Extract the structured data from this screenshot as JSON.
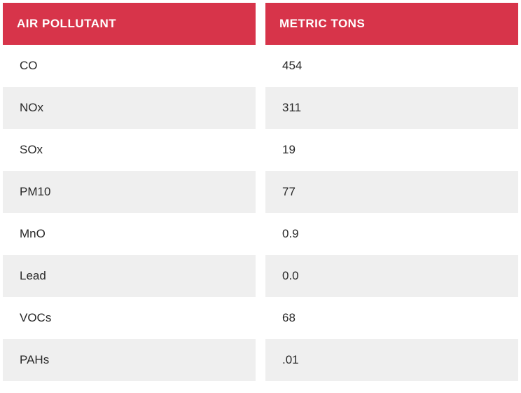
{
  "table": {
    "type": "table",
    "columns": [
      {
        "label": "AIR POLLUTANT"
      },
      {
        "label": "METRIC TONS"
      }
    ],
    "rows": [
      {
        "pollutant": "CO",
        "value": "454"
      },
      {
        "pollutant": "NOx",
        "value": "311"
      },
      {
        "pollutant": "SOx",
        "value": "19"
      },
      {
        "pollutant": "PM10",
        "value": "77"
      },
      {
        "pollutant": "MnO",
        "value": "0.9"
      },
      {
        "pollutant": "Lead",
        "value": "0.0"
      },
      {
        "pollutant": "VOCs",
        "value": "68"
      },
      {
        "pollutant": "PAHs",
        "value": ".01"
      }
    ],
    "header_bg": "#d7344a",
    "header_text_color": "#ffffff",
    "row_even_bg": "#ffffff",
    "row_odd_bg": "#efefef",
    "text_color": "#282828",
    "font_size_header": 17,
    "font_size_body": 17,
    "column_gap": 14
  }
}
